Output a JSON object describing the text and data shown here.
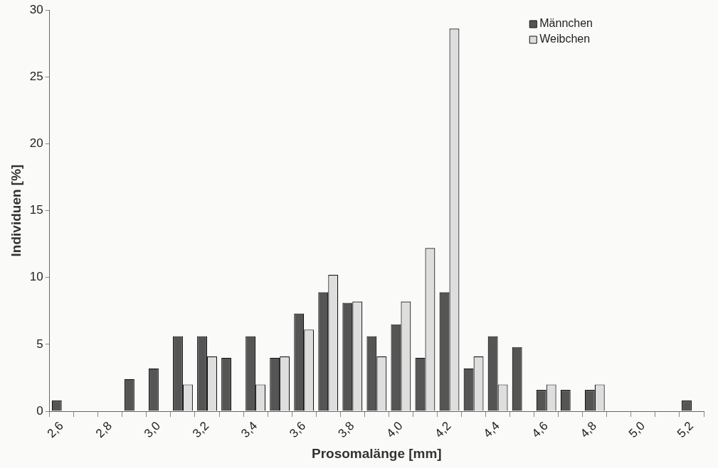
{
  "chart_data": {
    "type": "bar",
    "xlabel": "Prosomalänge [mm]",
    "ylabel": "Individuen [%]",
    "categories": [
      "2,6",
      null,
      "2,8",
      null,
      "3,0",
      null,
      "3,2",
      null,
      "3,4",
      null,
      "3,6",
      null,
      "3,8",
      null,
      "4,0",
      null,
      "4,2",
      null,
      "4,4",
      null,
      "4,6",
      null,
      "4,8",
      null,
      "5,0",
      null,
      "5,2"
    ],
    "series": [
      {
        "name": "Männchen",
        "color": "#555555",
        "values": [
          0.8,
          0,
          0,
          2.4,
          3.2,
          5.6,
          5.6,
          4.0,
          5.6,
          4.0,
          7.3,
          8.9,
          8.1,
          5.6,
          6.5,
          4.0,
          8.9,
          3.2,
          5.6,
          4.8,
          1.6,
          1.6,
          1.6,
          0,
          0,
          0,
          0.8
        ]
      },
      {
        "name": "Weibchen",
        "color": "#dedede",
        "values": [
          0,
          0,
          0,
          0,
          0,
          2.0,
          4.1,
          0,
          2.0,
          4.1,
          6.1,
          10.2,
          8.2,
          4.1,
          8.2,
          12.2,
          28.6,
          4.1,
          2.0,
          0,
          2.0,
          0,
          2.0,
          0,
          0,
          0,
          0
        ]
      }
    ],
    "ylim": [
      0,
      30
    ],
    "yticks": [
      0,
      5,
      10,
      15,
      20,
      25,
      30
    ],
    "grid": false,
    "legend": "top right"
  }
}
